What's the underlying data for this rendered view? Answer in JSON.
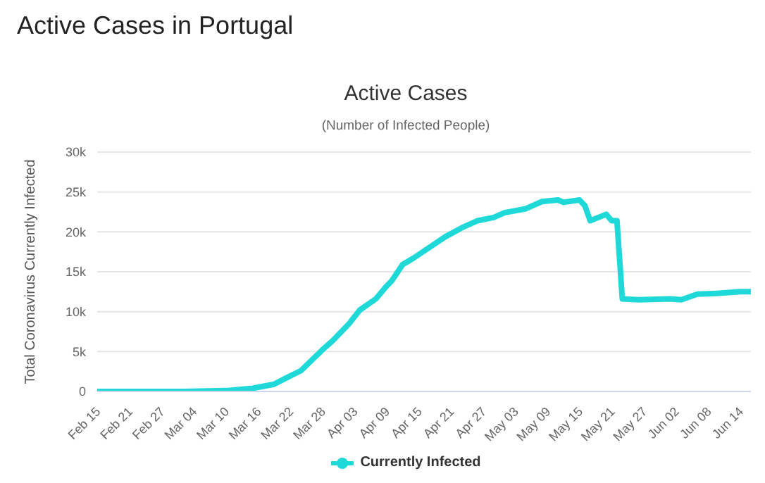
{
  "chart_data": {
    "type": "line",
    "title": "Active Cases",
    "subtitle": "(Number of Infected People)",
    "annotations": [
      "Active Cases in Portugal"
    ],
    "ylabel": "Total Coronavirus Currently Infected",
    "x": [
      "--02-15",
      "--03-02",
      "--03-10",
      "--03-15",
      "--03-19",
      "--03-21",
      "--03-24",
      "--03-26",
      "--03-28",
      "--03-30",
      "--04-02",
      "--04-04",
      "--04-07",
      "--04-09",
      "--04-10",
      "--04-12",
      "--04-14",
      "--04-16",
      "--04-20",
      "--04-23",
      "--04-26",
      "--04-29",
      "--05-01",
      "--05-05",
      "--05-08",
      "--05-11",
      "--05-12",
      "--05-15",
      "--05-16",
      "--05-17",
      "--05-20",
      "--05-21",
      "--05-22",
      "--05-23",
      "--05-26",
      "--06-01",
      "--06-03",
      "--06-06",
      "--06-10",
      "--06-14",
      "--06-16"
    ],
    "series": [
      {
        "name": "Currently Infected",
        "color": "#1fd9d9",
        "values": [
          0,
          0,
          100,
          400,
          900,
          1600,
          2600,
          3900,
          5200,
          6400,
          8500,
          10200,
          11600,
          13200,
          13900,
          15900,
          16700,
          17600,
          19400,
          20500,
          21400,
          21800,
          22400,
          22900,
          23800,
          24000,
          23700,
          24000,
          23300,
          21400,
          22200,
          21400,
          21400,
          11600,
          11500,
          11600,
          11500,
          12200,
          12300,
          12500,
          12500
        ]
      }
    ],
    "xlim": [
      "--02-15",
      "--06-16"
    ],
    "xticks": [
      {
        "value": "--02-15",
        "label": "Feb 15"
      },
      {
        "value": "--02-21",
        "label": "Feb 21"
      },
      {
        "value": "--02-27",
        "label": "Feb 27"
      },
      {
        "value": "--03-04",
        "label": "Mar 04"
      },
      {
        "value": "--03-10",
        "label": "Mar 10"
      },
      {
        "value": "--03-16",
        "label": "Mar 16"
      },
      {
        "value": "--03-22",
        "label": "Mar 22"
      },
      {
        "value": "--03-28",
        "label": "Mar 28"
      },
      {
        "value": "--04-03",
        "label": "Apr 03"
      },
      {
        "value": "--04-09",
        "label": "Apr 09"
      },
      {
        "value": "--04-15",
        "label": "Apr 15"
      },
      {
        "value": "--04-21",
        "label": "Apr 21"
      },
      {
        "value": "--04-27",
        "label": "Apr 27"
      },
      {
        "value": "--05-03",
        "label": "May 03"
      },
      {
        "value": "--05-09",
        "label": "May 09"
      },
      {
        "value": "--05-15",
        "label": "May 15"
      },
      {
        "value": "--05-21",
        "label": "May 21"
      },
      {
        "value": "--05-27",
        "label": "May 27"
      },
      {
        "value": "--06-02",
        "label": "Jun 02"
      },
      {
        "value": "--06-08",
        "label": "Jun 08"
      },
      {
        "value": "--06-14",
        "label": "Jun 14"
      }
    ],
    "ylim": [
      0,
      30000
    ],
    "yticks": [
      0,
      {
        "value": 5000,
        "label": "5k"
      },
      {
        "value": 10000,
        "label": "10k"
      },
      {
        "value": 15000,
        "label": "15k"
      },
      {
        "value": 20000,
        "label": "20k"
      },
      {
        "value": 25000,
        "label": "25k"
      },
      {
        "value": 30000,
        "label": "30k"
      }
    ],
    "grid": "y",
    "legend": "bottom",
    "marker": "none",
    "line_style": "solid"
  }
}
